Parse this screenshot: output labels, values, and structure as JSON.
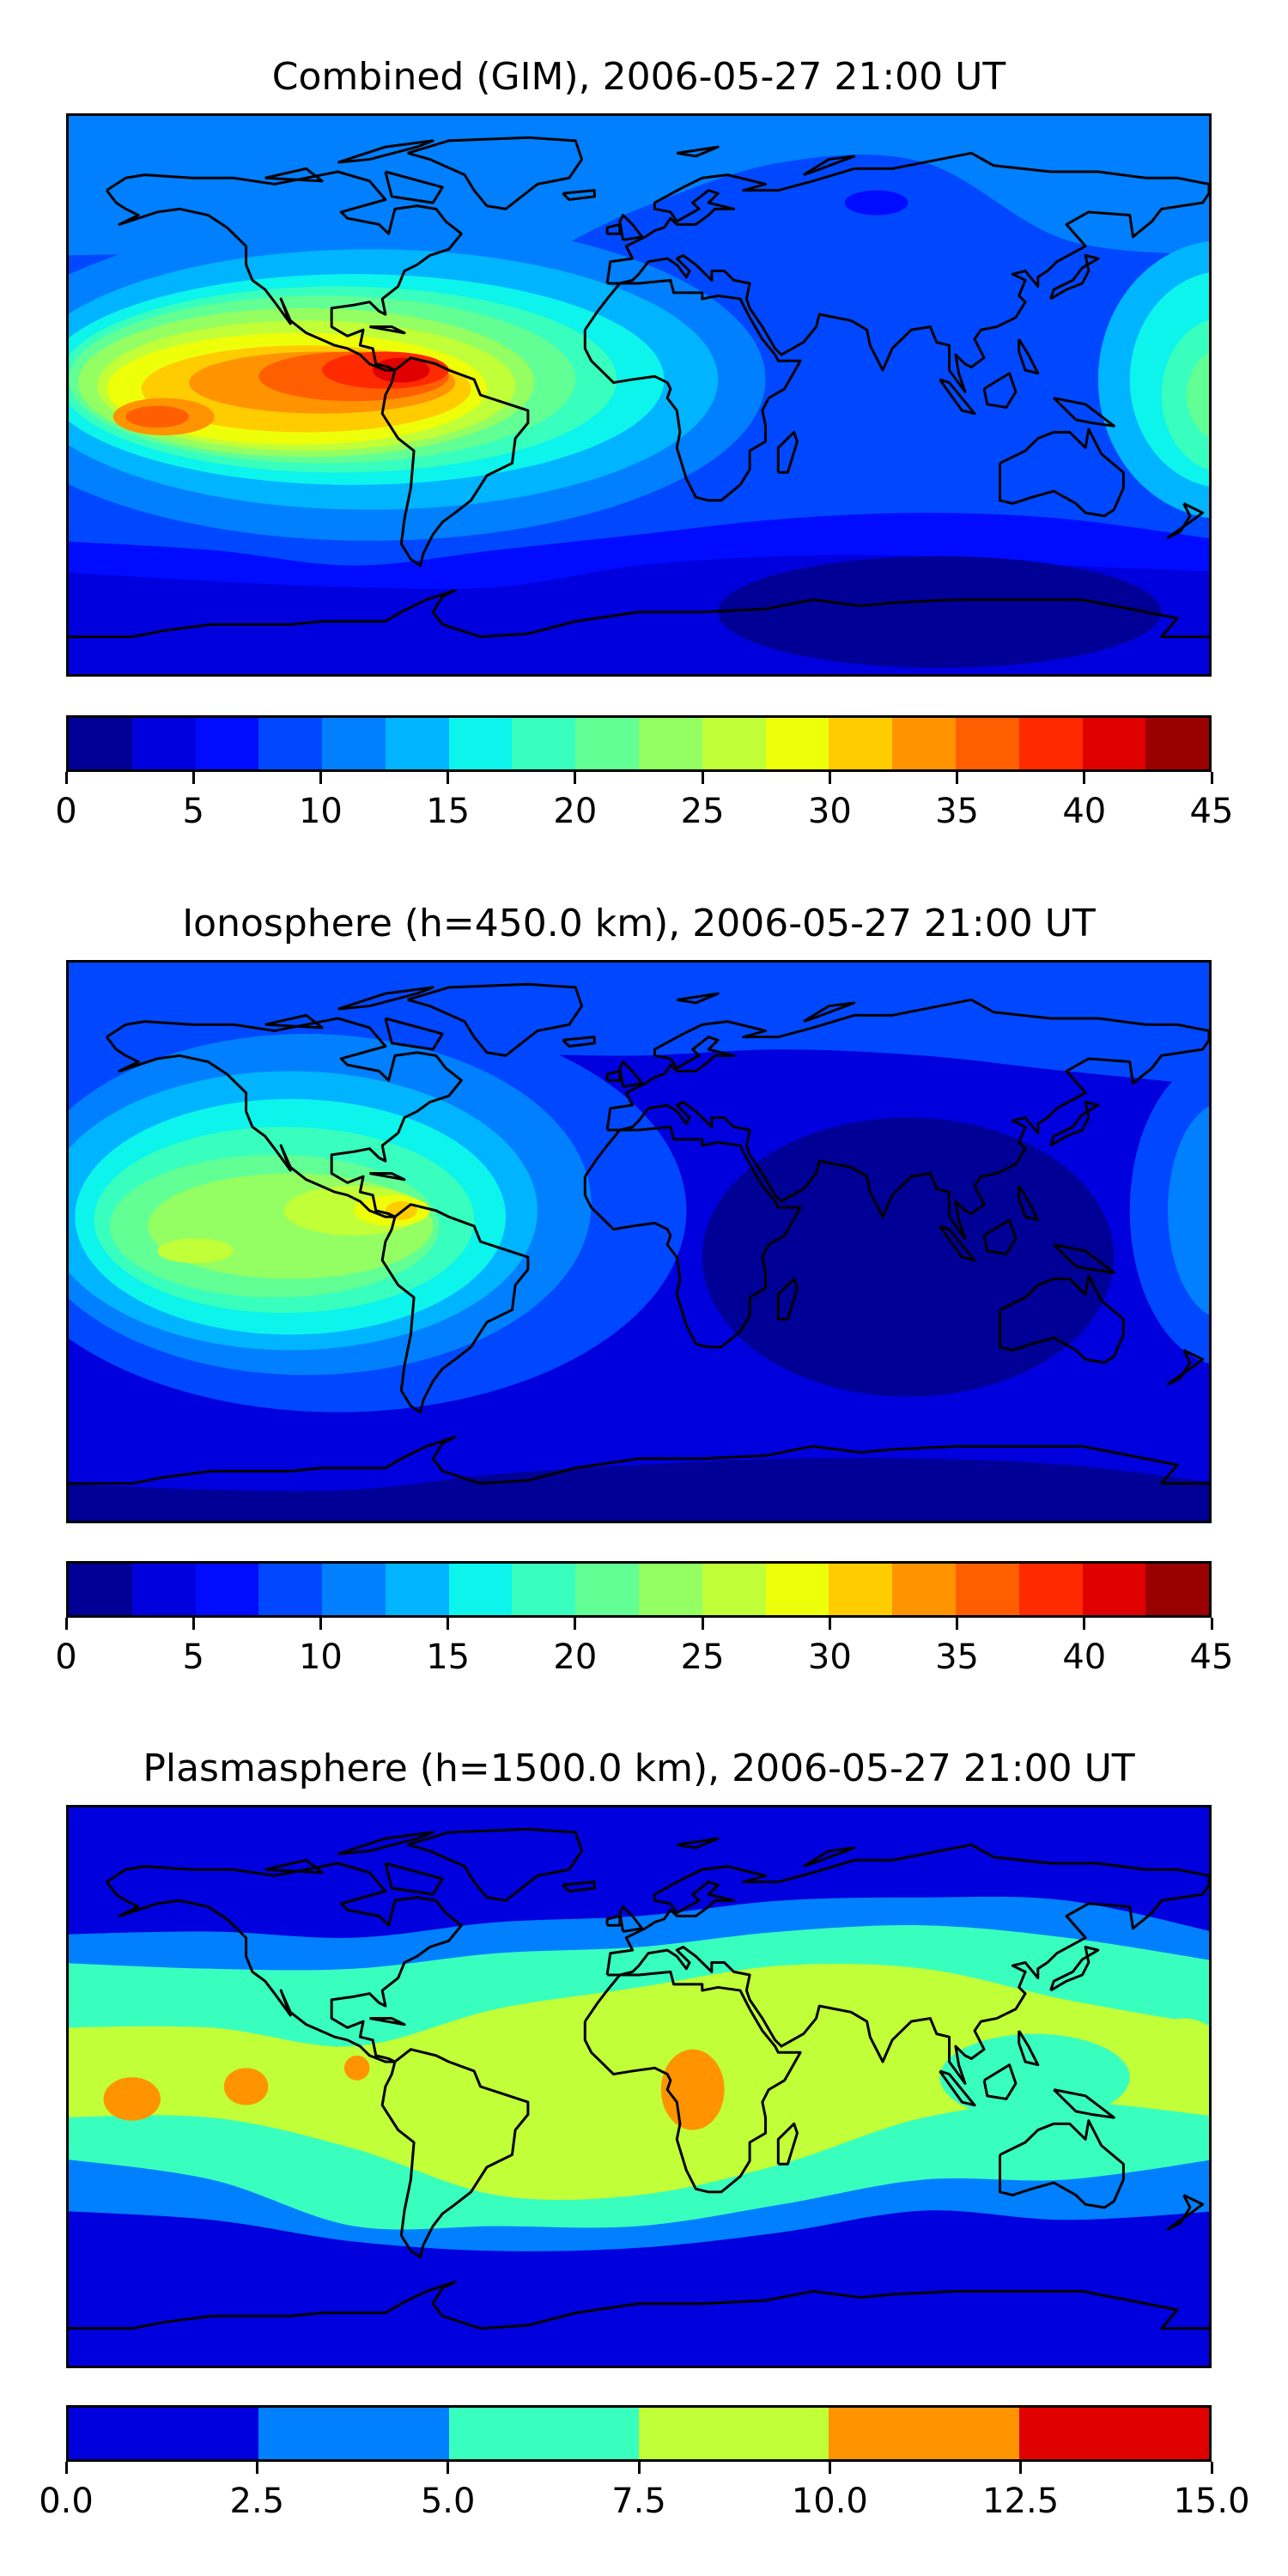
{
  "chart_data": [
    {
      "type": "heatmap",
      "subtype": "filled-contour-map",
      "title": "Combined (GIM), 2006-05-27 21:00 UT",
      "projection": "PlateCarree",
      "lon_range": [
        -180,
        180
      ],
      "lat_range": [
        -90,
        90
      ],
      "vmin": 0,
      "vmax": 45,
      "levels": [
        0,
        2.5,
        5,
        7.5,
        10,
        12.5,
        15,
        17.5,
        20,
        22.5,
        25,
        27.5,
        30,
        32.5,
        35,
        37.5,
        40,
        42.5,
        45
      ],
      "colors": [
        "#000096",
        "#0000de",
        "#000cff",
        "#0048ff",
        "#0080ff",
        "#00b4ff",
        "#0cf4eb",
        "#38ffbe",
        "#62ff94",
        "#94ff62",
        "#c1ff38",
        "#eeff0a",
        "#ffcc00",
        "#ff9400",
        "#ff5f00",
        "#ff2a00",
        "#e00000",
        "#9a0000"
      ],
      "tick_values": [
        0,
        5,
        10,
        15,
        20,
        25,
        30,
        35,
        40,
        45
      ],
      "tick_labels": [
        "0",
        "5",
        "10",
        "15",
        "20",
        "25",
        "30",
        "35",
        "40",
        "45"
      ],
      "colorbar": "bottom"
    },
    {
      "type": "heatmap",
      "subtype": "filled-contour-map",
      "title": "Ionosphere  (h=450.0 km), 2006-05-27 21:00 UT",
      "projection": "PlateCarree",
      "lon_range": [
        -180,
        180
      ],
      "lat_range": [
        -90,
        90
      ],
      "vmin": 0,
      "vmax": 45,
      "levels": [
        0,
        2.5,
        5,
        7.5,
        10,
        12.5,
        15,
        17.5,
        20,
        22.5,
        25,
        27.5,
        30,
        32.5,
        35,
        37.5,
        40,
        42.5,
        45
      ],
      "colors": [
        "#000096",
        "#0000de",
        "#000cff",
        "#0048ff",
        "#0080ff",
        "#00b4ff",
        "#0cf4eb",
        "#38ffbe",
        "#62ff94",
        "#94ff62",
        "#c1ff38",
        "#eeff0a",
        "#ffcc00",
        "#ff9400",
        "#ff5f00",
        "#ff2a00",
        "#e00000",
        "#9a0000"
      ],
      "tick_values": [
        0,
        5,
        10,
        15,
        20,
        25,
        30,
        35,
        40,
        45
      ],
      "tick_labels": [
        "0",
        "5",
        "10",
        "15",
        "20",
        "25",
        "30",
        "35",
        "40",
        "45"
      ],
      "colorbar": "bottom"
    },
    {
      "type": "heatmap",
      "subtype": "filled-contour-map",
      "title": "Plasmasphere (h=1500.0 km), 2006-05-27 21:00 UT",
      "projection": "PlateCarree",
      "lon_range": [
        -180,
        180
      ],
      "lat_range": [
        -90,
        90
      ],
      "vmin": 0,
      "vmax": 15,
      "levels": [
        0,
        2.5,
        5,
        7.5,
        10,
        12.5,
        15
      ],
      "colors": [
        "#0000de",
        "#0080ff",
        "#38ffbe",
        "#c1ff38",
        "#ff9400",
        "#e00000"
      ],
      "tick_values": [
        0,
        2.5,
        5,
        7.5,
        10,
        12.5,
        15
      ],
      "tick_labels": [
        "0.0",
        "2.5",
        "5.0",
        "7.5",
        "10.0",
        "12.5",
        "15.0"
      ],
      "colorbar": "bottom"
    }
  ]
}
